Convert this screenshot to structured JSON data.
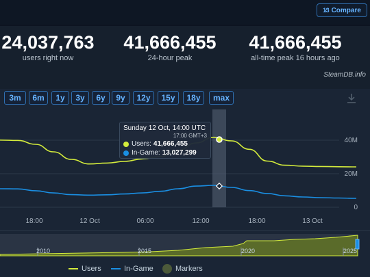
{
  "header": {
    "compare_label": "Compare",
    "compare_icon": "sort-numeric-icon"
  },
  "stats": [
    {
      "value": "24,037,763",
      "label": "users right now"
    },
    {
      "value": "41,666,455",
      "label": "24-hour peak"
    },
    {
      "value": "41,666,455",
      "label": "all-time peak 16 hours ago"
    }
  ],
  "credit": "SteamDB.info",
  "ranges": [
    "3m",
    "6m",
    "1y",
    "3y",
    "6y",
    "9y",
    "12y",
    "15y",
    "18y",
    "max"
  ],
  "tooltip": {
    "title": "Sunday 12 Oct, 14:00 UTC",
    "subtitle": "17:00 GMT+3",
    "users_label": "Users:",
    "users_value": "41,666,455",
    "ingame_label": "In-Game:",
    "ingame_value": "13,027,299"
  },
  "legend": {
    "users": "Users",
    "ingame": "In-Game",
    "markers": "Markers"
  },
  "colors": {
    "users": "#d4ec3c",
    "ingame": "#1a8fe3",
    "accent": "#66b3ff"
  },
  "chart_data": {
    "type": "line",
    "x_labels": [
      "18:00",
      "12 Oct",
      "06:00",
      "12:00",
      "18:00",
      "13 Oct"
    ],
    "y_ticks": [
      "40M",
      "20M",
      "0"
    ],
    "ylim": [
      0,
      44000000
    ],
    "series": [
      {
        "name": "Users",
        "values": [
          40000000,
          39800000,
          37500000,
          33000000,
          28500000,
          25800000,
          26300000,
          27300000,
          28800000,
          30200000,
          33800000,
          38300000,
          41666455,
          39500000,
          34500000,
          27500000,
          25000000,
          24500000,
          24300000,
          24100000,
          24037763
        ]
      },
      {
        "name": "In-Game",
        "values": [
          11000000,
          10900000,
          9800000,
          8500000,
          7500000,
          7200000,
          7400000,
          7900000,
          8500000,
          9500000,
          11000000,
          12600000,
          13027299,
          11800000,
          9900000,
          8200000,
          6800000,
          6100000,
          5700000,
          5500000,
          5300000
        ]
      }
    ],
    "navigator": {
      "x_labels": [
        "2010",
        "2015",
        "2020",
        "2025"
      ]
    }
  }
}
